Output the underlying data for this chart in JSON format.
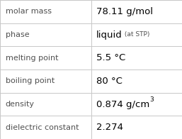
{
  "rows": [
    {
      "label": "molar mass",
      "value_parts": [
        {
          "text": "78.11 g/mol",
          "style": "normal"
        }
      ]
    },
    {
      "label": "phase",
      "value_parts": [
        {
          "text": "liquid",
          "style": "normal"
        },
        {
          "text": " (at STP)",
          "style": "small"
        }
      ]
    },
    {
      "label": "melting point",
      "value_parts": [
        {
          "text": "5.5 °C",
          "style": "normal"
        }
      ]
    },
    {
      "label": "boiling point",
      "value_parts": [
        {
          "text": "80 °C",
          "style": "normal"
        }
      ]
    },
    {
      "label": "density",
      "value_parts": [
        {
          "text": "0.874 g/cm",
          "style": "normal"
        },
        {
          "text": "3",
          "style": "super"
        }
      ]
    },
    {
      "label": "dielectric constant",
      "value_parts": [
        {
          "text": "2.274",
          "style": "normal"
        }
      ]
    }
  ],
  "col_split": 0.5,
  "background": "#ffffff",
  "grid_color": "#c8c8c8",
  "label_color": "#505050",
  "value_color": "#000000",
  "small_color": "#505050",
  "label_fontsize": 8.0,
  "value_fontsize": 9.5,
  "small_fontsize": 6.5,
  "super_fontsize": 6.5,
  "font_family": "DejaVu Sans"
}
